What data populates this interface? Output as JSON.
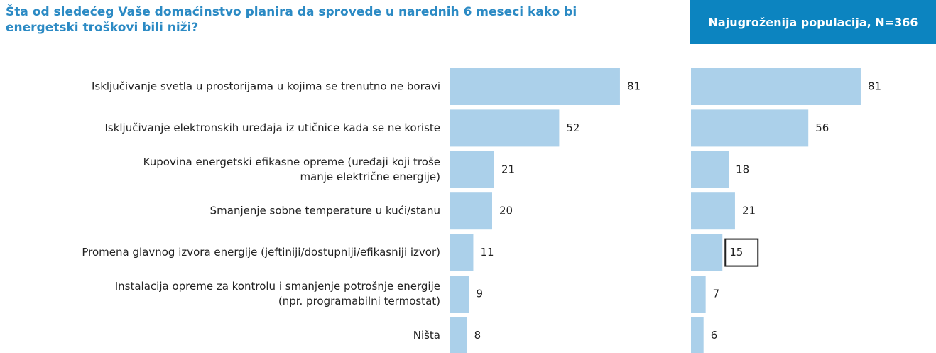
{
  "chart_data": [
    {
      "type": "bar",
      "orientation": "horizontal",
      "title": "Šta od sledećeg Vaše domaćinstvo planira da sprovede u narednih 6 meseci kako bi energetski troškovi bili niži?",
      "categories": [
        [
          "Isključivanje svetla u prostorijama u kojima se trenutno ne boravi"
        ],
        [
          "Isključivanje elektronskih uređaja iz utičnice kada se ne koriste"
        ],
        [
          "Kupovina energetski efikasne opreme (uređaji koji troše",
          "manje električne energije)"
        ],
        [
          "Smanjenje sobne temperature u kući/stanu"
        ],
        [
          "Promena glavnog izvora energije (jeftiniji/dostupniji/efikasniji izvor)"
        ],
        [
          "Instalacija opreme za kontrolu i smanjenje potrošnje energije",
          "(npr. programabilni termostat)"
        ],
        [
          "Ništa"
        ]
      ],
      "values": [
        81,
        52,
        21,
        20,
        11,
        9,
        8
      ],
      "color": "#abd0ea",
      "xlim": [
        0,
        100
      ]
    },
    {
      "type": "bar",
      "orientation": "horizontal",
      "title": "Najugroženija populacija, N=366",
      "values": [
        81,
        56,
        18,
        21,
        15,
        7,
        6
      ],
      "color": "#abd0ea",
      "xlim": [
        0,
        100
      ],
      "highlight": 4
    }
  ]
}
